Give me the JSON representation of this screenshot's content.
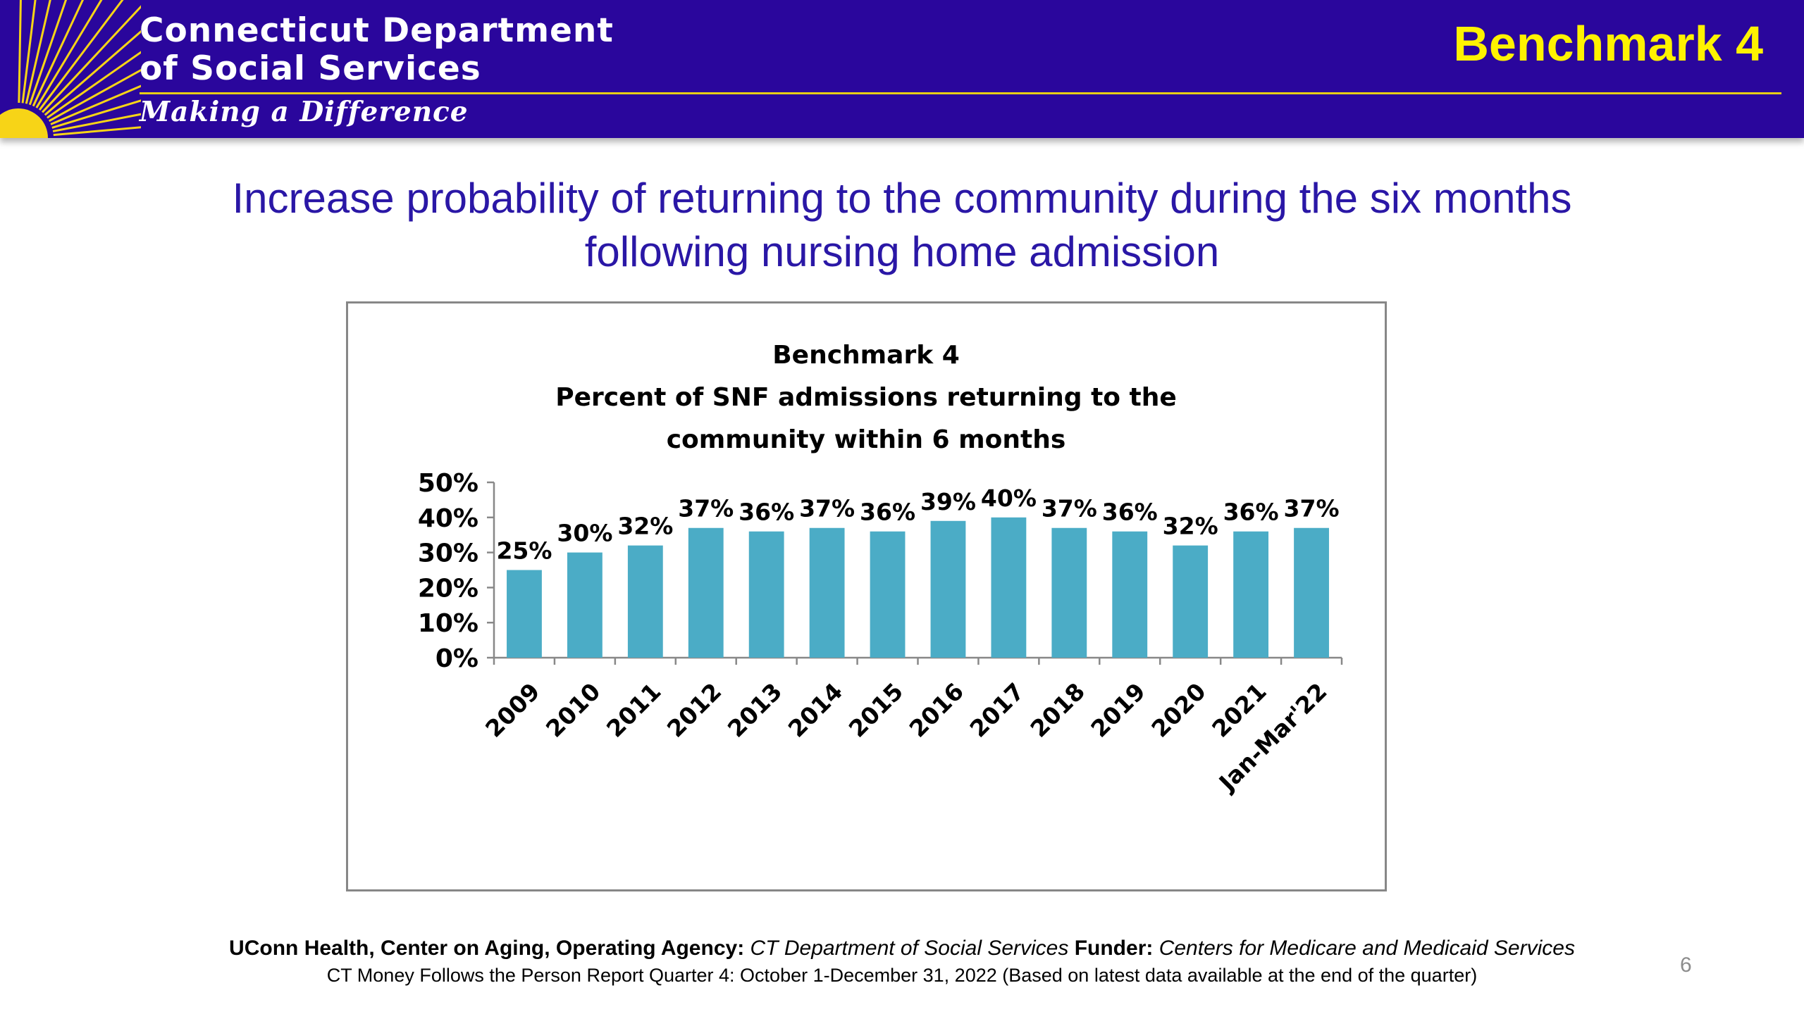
{
  "header": {
    "org_line1": "Connecticut Department",
    "org_line2": "of Social Services",
    "tagline": "Making a Difference",
    "slide_label": "Benchmark 4",
    "logo_icon": "sunburst-icon",
    "colors": {
      "banner": "#2a069c",
      "accent": "#fff200",
      "sun": "#f7d417"
    }
  },
  "slide": {
    "title_line1": "Increase probability of returning to the community during the six months",
    "title_line2": "following nursing home admission"
  },
  "chart_data": {
    "type": "bar",
    "title_lines": [
      "Benchmark 4",
      "Percent of SNF admissions returning to the",
      "community within 6 months"
    ],
    "categories": [
      "2009",
      "2010",
      "2011",
      "2012",
      "2013",
      "2014",
      "2015",
      "2016",
      "2017",
      "2018",
      "2019",
      "2020",
      "2021",
      "Jan-Mar'22"
    ],
    "values": [
      25,
      30,
      32,
      37,
      36,
      37,
      36,
      39,
      40,
      37,
      36,
      32,
      36,
      37
    ],
    "data_labels": [
      "25%",
      "30%",
      "32%",
      "37%",
      "36%",
      "37%",
      "36%",
      "39%",
      "40%",
      "37%",
      "36%",
      "32%",
      "36%",
      "37%"
    ],
    "y_ticks": [
      0,
      10,
      20,
      30,
      40,
      50
    ],
    "y_tick_labels": [
      "0%",
      "10%",
      "20%",
      "30%",
      "40%",
      "50%"
    ],
    "ylim": [
      0,
      50
    ],
    "grid": false,
    "legend": "none",
    "bar_color": "#4bacc6"
  },
  "footer": {
    "agency_label": "UConn Health, Center on Aging, Operating Agency:",
    "agency_value": " CT Department of Social Services ",
    "funder_label": "Funder:",
    "funder_value": " Centers for Medicare and Medicaid Services",
    "report_line": "CT Money Follows the Person Report Quarter 4: October 1-December 31, 2022 (Based on latest data available at the end of the quarter)",
    "page_number": "6"
  }
}
